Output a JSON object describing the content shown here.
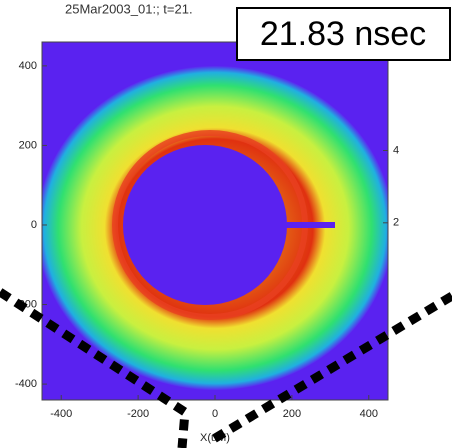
{
  "chart_data": {
    "type": "image",
    "title": "25Mar2003_01:; t=21.",
    "annotation": "21.83 nsec",
    "x_label": "X(uM)",
    "xlim": [
      -450,
      450
    ],
    "xticks": [
      -400,
      -200,
      0,
      200,
      400
    ],
    "ylim": [
      -440,
      460
    ],
    "yticks": [
      -400,
      -200,
      0,
      200,
      400
    ],
    "y2lim": [
      -2.9,
      7
    ],
    "y2ticks": [
      2,
      4
    ]
  }
}
